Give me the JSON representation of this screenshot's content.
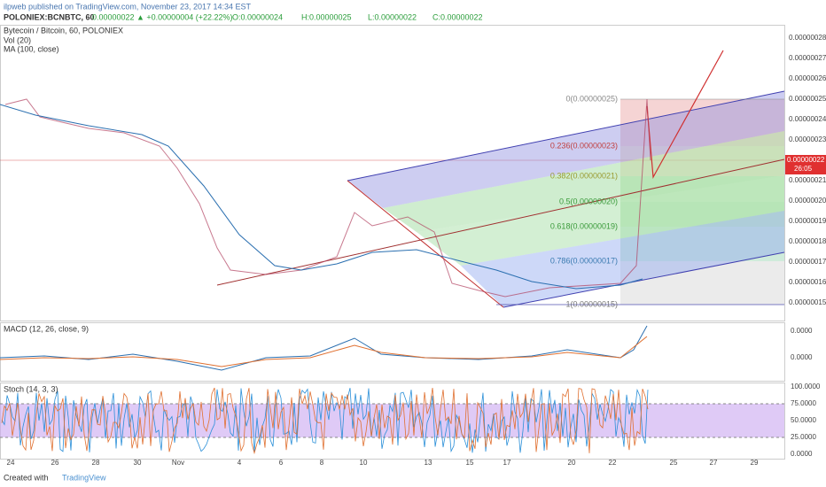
{
  "header": {
    "publisher": "ilpweb published on TradingView.com, November 23, 2017 14:34 EST",
    "symbol": "POLONIEX:BCNBTC, 60",
    "last": "0.00000022",
    "change": "▲ +0.00000004 (+22.22%)",
    "open": "O:0.00000024",
    "high": "H:0.00000025",
    "low": "L:0.00000022",
    "close": "C:0.00000022"
  },
  "main_pane": {
    "title": "Bytecoin / Bitcoin, 60, POLONIEX",
    "indicators": [
      "Vol (20)",
      "MA (100, close)"
    ],
    "price_ticks": [
      "0.00000028",
      "0.00000027",
      "0.00000026",
      "0.00000025",
      "0.00000024",
      "0.00000023",
      "0.00000022",
      "0.00000021",
      "0.00000020",
      "0.00000019",
      "0.00000018",
      "0.00000017",
      "0.00000016",
      "0.00000015"
    ],
    "current_price": "0.00000022",
    "countdown": "26:05",
    "fib_levels": [
      "0(0.00000025)",
      "0.236(0.00000023)",
      "0.382(0.00000021)",
      "0.5(0.00000020)",
      "0.618(0.00000019)",
      "0.786(0.00000017)",
      "1(0.00000015)"
    ]
  },
  "macd_pane": {
    "title": "MACD (12, 26, close, 9)",
    "ticks": [
      "0.0000",
      "0.0000"
    ]
  },
  "stoch_pane": {
    "title": "Stoch (14, 3, 3)",
    "ticks": [
      "100.0000",
      "75.0000",
      "50.0000",
      "25.0000",
      "0.0000"
    ]
  },
  "time_axis": [
    "24",
    "26",
    "28",
    "30",
    "Nov",
    "4",
    "6",
    "8",
    "10",
    "13",
    "15",
    "17",
    "20",
    "22",
    "25",
    "27",
    "29"
  ],
  "footer": {
    "created_with": "Created with",
    "brand": "TradingView"
  }
}
